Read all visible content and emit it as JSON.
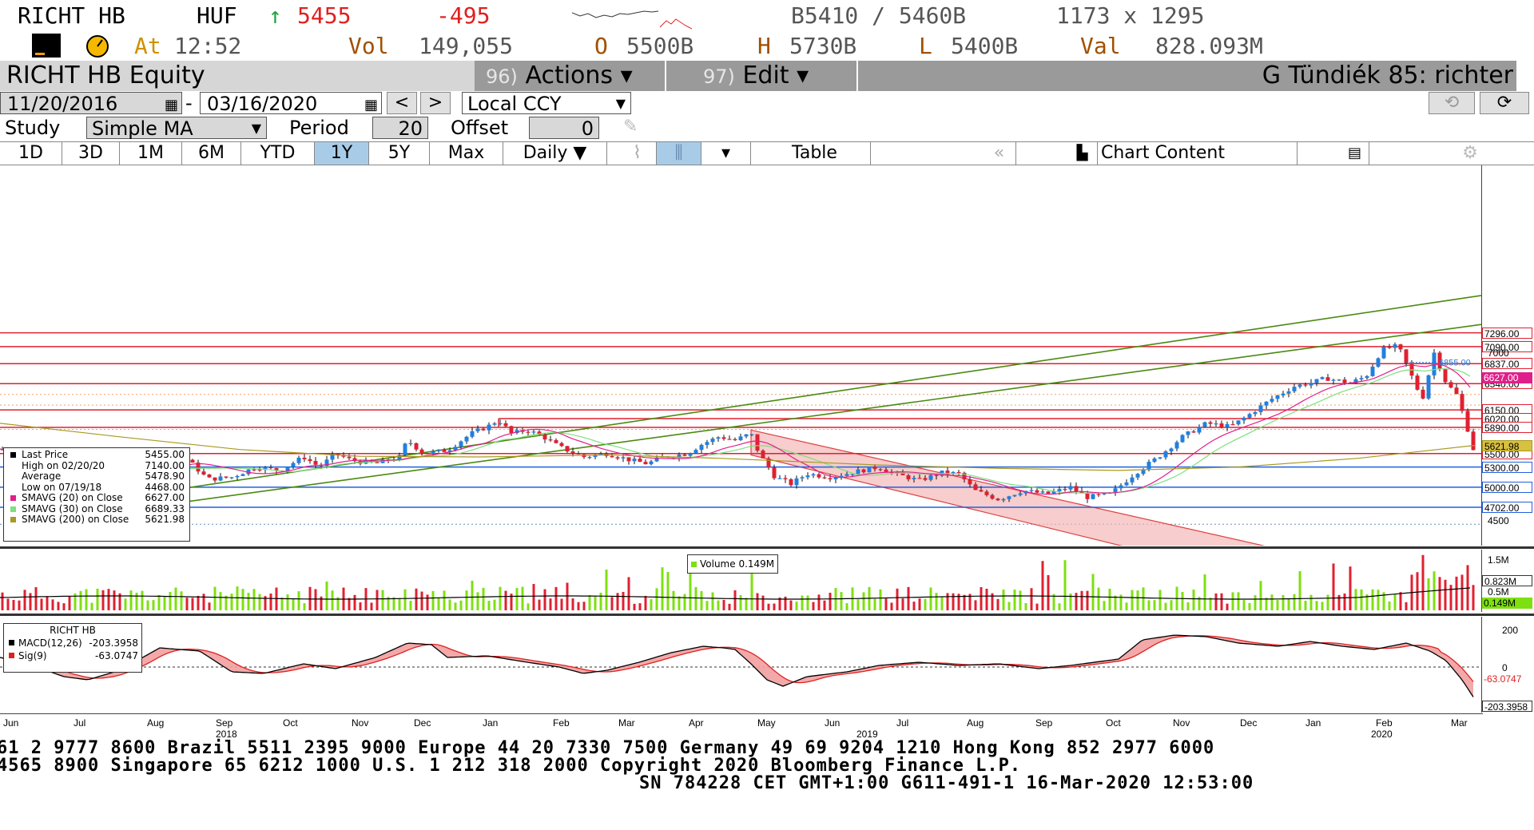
{
  "quote": {
    "ticker": "RICHT HB",
    "currency": "HUF",
    "arrow": "↑",
    "last": "5455",
    "change": "-495",
    "bid_ask": "B5410 / 5460B",
    "size": "1173 x 1295",
    "at_label": "At",
    "time": "12:52",
    "vol_label": "Vol",
    "volume": "149,055",
    "open_label": "O",
    "open": "5500B",
    "high_label": "H",
    "high": "5730B",
    "low_label": "L",
    "low": "5400B",
    "val_label": "Val",
    "value": "828.093M"
  },
  "titlebar": {
    "security": "RICHT HB Equity",
    "actions_num": "96)",
    "actions_label": "Actions ▾",
    "edit_num": "97)",
    "edit_label": "Edit ▾",
    "chart_name": "G Tündiék 85: richter"
  },
  "controls": {
    "start_date": "11/20/2016",
    "separator": "-",
    "end_date": "03/16/2020",
    "prev": "<",
    "next": ">",
    "currency": "Local CCY",
    "study_label": "Study",
    "study": "Simple MA",
    "period_label": "Period",
    "period": "20",
    "offset_label": "Offset",
    "offset": "0"
  },
  "tabs": {
    "ranges": [
      "1D",
      "3D",
      "1M",
      "6M",
      "YTD",
      "1Y",
      "5Y",
      "Max"
    ],
    "active": "1Y",
    "frequency": "Daily ▼",
    "table": "Table",
    "chart_content": "Chart Content"
  },
  "legend": {
    "rows": [
      {
        "label": "Last Price",
        "value": "5455.00",
        "color": "#000000"
      },
      {
        "label": "High on 02/20/20",
        "value": "7140.00",
        "color": "#ffffff"
      },
      {
        "label": "Average",
        "value": "5478.90",
        "color": "#ffffff"
      },
      {
        "label": "Low on 07/19/18",
        "value": "4468.00",
        "color": "#ffffff"
      },
      {
        "label": "SMAVG (20)  on Close",
        "value": "6627.00",
        "color": "#e0208a"
      },
      {
        "label": "SMAVG (30)  on Close",
        "value": "6689.33",
        "color": "#7ee07e"
      },
      {
        "label": "SMAVG (200)  on Close",
        "value": "5621.98",
        "color": "#a89a20"
      }
    ]
  },
  "price_axis": {
    "ticks": [
      "7000",
      "6500",
      "6000",
      "5500",
      "5000",
      "4500"
    ],
    "lines": [
      {
        "label": "7296.00",
        "color": "#e02030"
      },
      {
        "label": "7090.00",
        "color": "#e02030"
      },
      {
        "label": "6837.00",
        "color": "#e02030"
      },
      {
        "label": "6540.00",
        "color": "#e02030"
      },
      {
        "label": "6150.00",
        "color": "#e02030"
      },
      {
        "label": "6020.00",
        "color": "#e02030"
      },
      {
        "label": "5890.00",
        "color": "#e02030"
      },
      {
        "label": "5500.00",
        "color": "#e02030"
      },
      {
        "label": "5300.00",
        "color": "#2060e0"
      },
      {
        "label": "5000.00",
        "color": "#2060e0"
      },
      {
        "label": "4702.00",
        "color": "#2060e0"
      }
    ],
    "ma_labels": [
      {
        "label": "6627.00",
        "color": "#e0208a"
      },
      {
        "label": "5621.98",
        "color": "#a89a20"
      }
    ],
    "callout": "6855.00"
  },
  "volume_panel": {
    "legend": "Volume 0.149M",
    "ticks": [
      "1.5M",
      "0.5M"
    ],
    "labels": [
      {
        "label": "0.823M",
        "color": "#000000"
      },
      {
        "label": "0.149M",
        "color": "#7ee010"
      }
    ]
  },
  "macd_panel": {
    "title": "RICHT HB",
    "rows": [
      {
        "label": "MACD(12,26)",
        "value": "-203.3958",
        "color": "#000000"
      },
      {
        "label": "Sig(9)",
        "value": "-63.0747",
        "color": "#e02020"
      }
    ],
    "ticks": [
      "200",
      "0"
    ],
    "labels": [
      {
        "label": "-63.0747",
        "color": "#e02020"
      },
      {
        "label": "-203.3958",
        "color": "#000000"
      }
    ]
  },
  "x_axis": {
    "months": [
      "Jun",
      "Jul",
      "Aug",
      "Sep",
      "Oct",
      "Nov",
      "Dec",
      "Jan",
      "Feb",
      "Mar",
      "Apr",
      "May",
      "Jun",
      "Jul",
      "Aug",
      "Sep",
      "Oct",
      "Nov",
      "Dec",
      "Jan",
      "Feb",
      "Mar"
    ],
    "years": [
      "2018",
      "2019",
      "2020"
    ]
  },
  "footer": {
    "line1": "61 2 9777 8600 Brazil 5511 2395 9000 Europe 44 20 7330 7500 Germany 49 69 9204 1210 Hong Kong 852 2977 6000",
    "line2": " 4565 8900         Singapore 65 6212 1000        U.S. 1 212 318 2000        Copyright 2020 Bloomberg Finance L.P.",
    "line3": "SN 784228 CET  GMT+1:00 G611-491-1 16-Mar-2020 12:53:00"
  },
  "colors": {
    "up": "#2080e0",
    "down": "#e02030",
    "trend": "#4a8a10",
    "channel": "#f4b8b8"
  }
}
